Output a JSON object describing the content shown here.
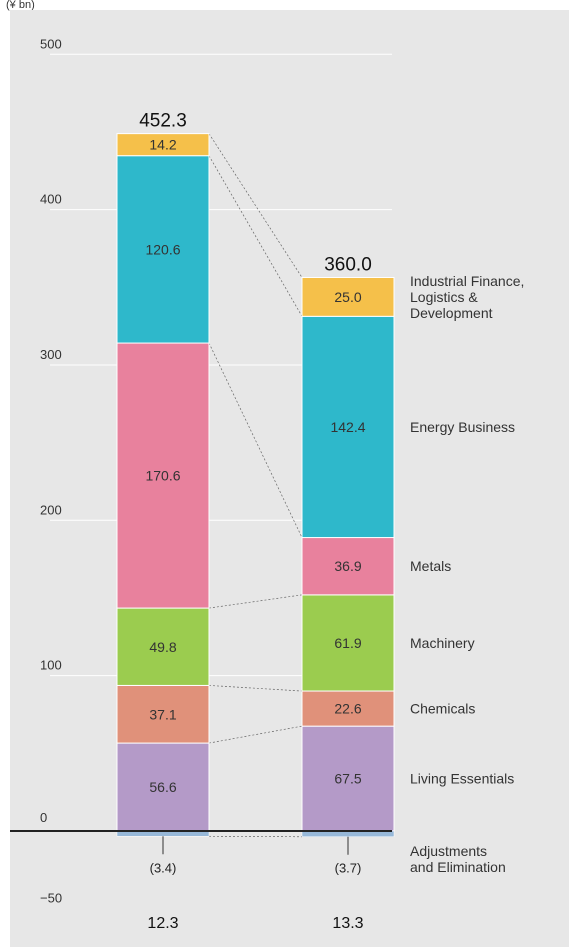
{
  "unit_label": "(¥ bn)",
  "chart_data": {
    "type": "stacked-bar",
    "ylim": [
      -50,
      500
    ],
    "yticks": [
      "500",
      "400",
      "300",
      "200",
      "100",
      "0",
      "−50"
    ],
    "categories": [
      "12.3",
      "13.3"
    ],
    "totals": [
      "452.3",
      "360.0"
    ],
    "series": [
      {
        "name": "Living Essentials",
        "color": "#b49ac8",
        "values": [
          56.6,
          67.5
        ],
        "labels": [
          "56.6",
          "67.5"
        ]
      },
      {
        "name": "Chemicals",
        "color": "#e0917a",
        "values": [
          37.1,
          22.6
        ],
        "labels": [
          "37.1",
          "22.6"
        ]
      },
      {
        "name": "Machinery",
        "color": "#9bcc4f",
        "values": [
          49.8,
          61.9
        ],
        "labels": [
          "49.8",
          "61.9"
        ]
      },
      {
        "name": "Metals",
        "color": "#e8819d",
        "values": [
          170.6,
          36.9
        ],
        "labels": [
          "170.6",
          "36.9"
        ]
      },
      {
        "name": "Energy Business",
        "color": "#2eb8cb",
        "values": [
          120.6,
          142.4
        ],
        "labels": [
          "120.6",
          "142.4"
        ]
      },
      {
        "name": "Industrial Finance, Logistics & Development",
        "color": "#f5c04a",
        "values": [
          14.2,
          25.0
        ],
        "labels": [
          "14.2",
          "25.0"
        ]
      }
    ],
    "negative_series": {
      "name": "Adjustments and Elimination",
      "color": "#97b8d8",
      "values": [
        -3.4,
        -3.7
      ],
      "labels": [
        "(3.4)",
        "(3.7)"
      ]
    }
  }
}
